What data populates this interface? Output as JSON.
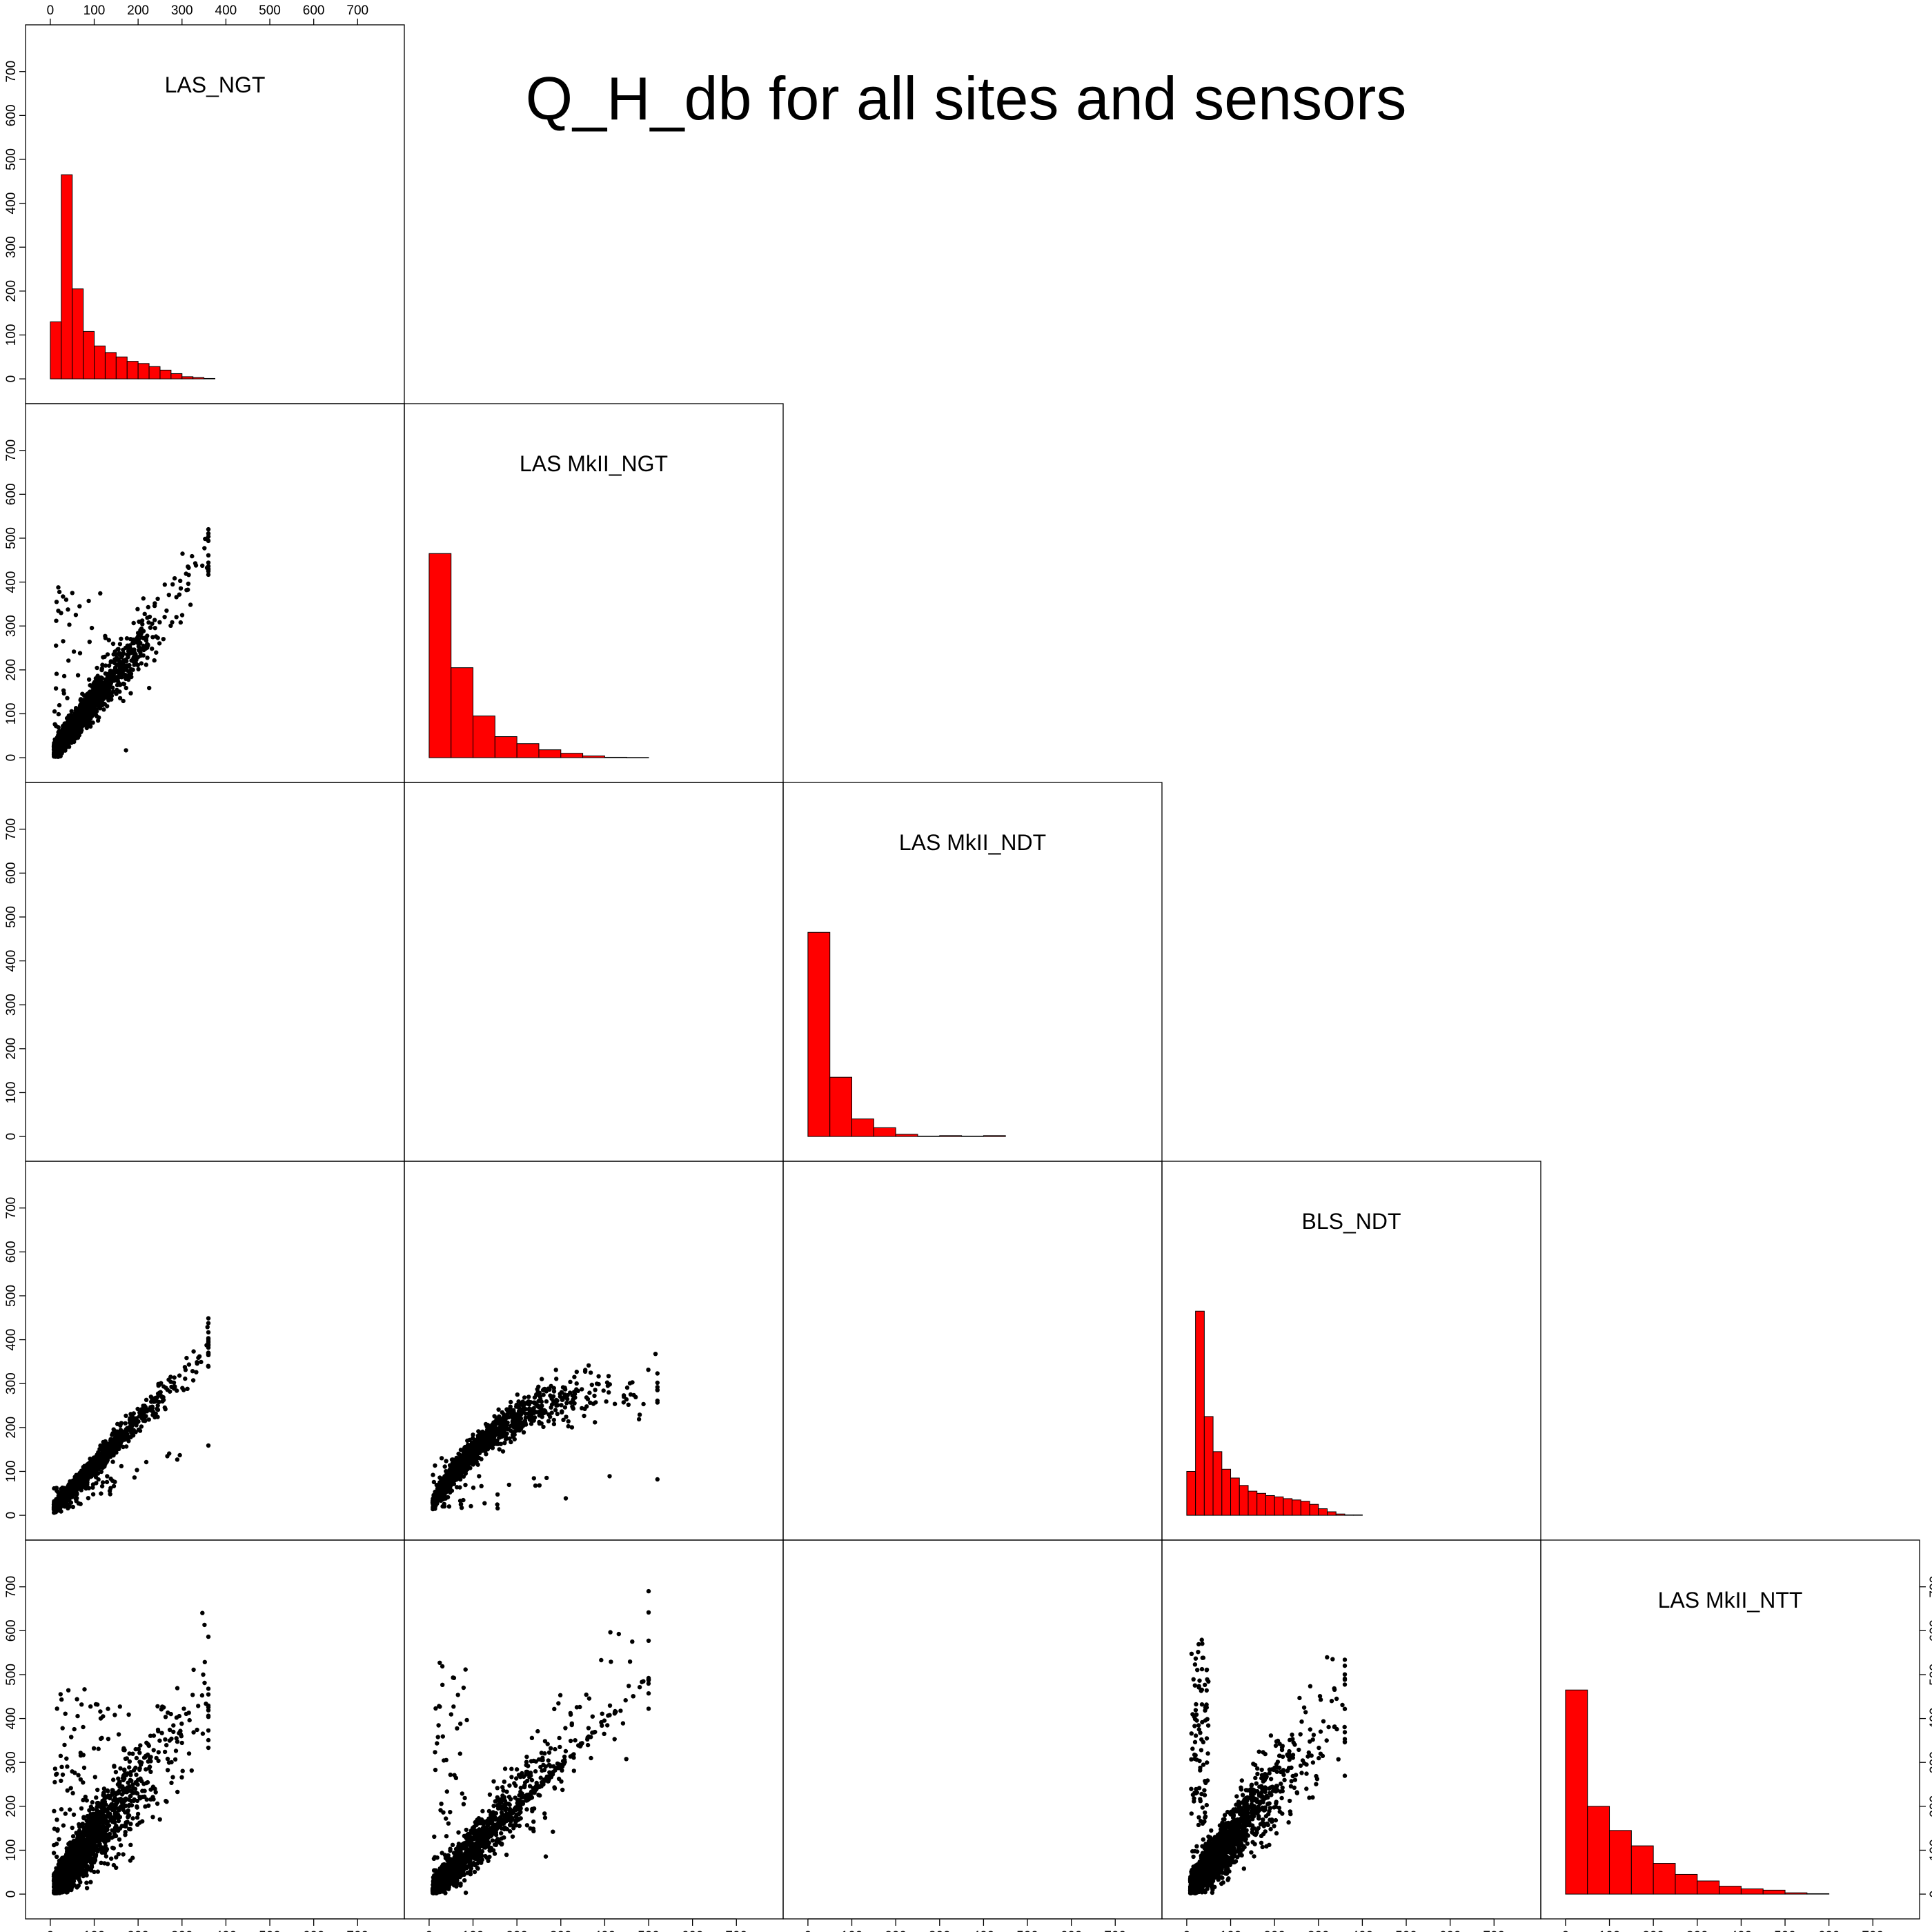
{
  "title": "Q_H_db for all sites and sensors",
  "colors": {
    "bar_fill": "#ff0000",
    "bar_stroke": "#000000",
    "point": "#000000",
    "frame": "#000000"
  },
  "chart_data": {
    "type": "scatter-matrix",
    "title": "Q_H_db for all sites and sensors",
    "variables": [
      "LAS_NGT",
      "LAS MkII_NGT",
      "LAS MkII_NDT",
      "BLS_NDT",
      "LAS MkII_NTT"
    ],
    "axis_range": [
      0,
      700
    ],
    "tick_labels": [
      "0",
      "100",
      "200",
      "300",
      "400",
      "500",
      "600",
      "700"
    ],
    "layout": "lower triangle: scatter plots; diagonal: histograms",
    "diagonal_histograms": [
      {
        "variable": "LAS_NGT",
        "bin_width": 25,
        "bins": [
          0,
          25,
          50,
          75,
          100,
          125,
          150,
          175,
          200,
          225,
          250,
          275,
          300,
          325,
          350
        ],
        "counts": [
          130,
          465,
          205,
          108,
          75,
          60,
          50,
          40,
          35,
          28,
          20,
          12,
          5,
          3,
          1
        ]
      },
      {
        "variable": "LAS MkII_NGT",
        "bin_width": 50,
        "bins": [
          0,
          50,
          100,
          150,
          200,
          250,
          300,
          350,
          400,
          450
        ],
        "counts": [
          465,
          205,
          95,
          48,
          32,
          18,
          10,
          4,
          1,
          0.5
        ]
      },
      {
        "variable": "LAS MkII_NDT",
        "bin_width": 50,
        "bins": [
          0,
          50,
          100,
          150,
          200,
          250,
          300,
          350,
          400
        ],
        "counts": [
          465,
          135,
          40,
          20,
          5,
          1,
          2,
          1,
          2
        ]
      },
      {
        "variable": "BLS_NDT",
        "bin_width": 20,
        "bins": [
          0,
          20,
          40,
          60,
          80,
          100,
          120,
          140,
          160,
          180,
          200,
          220,
          240,
          260,
          280,
          300,
          320,
          340,
          360,
          380
        ],
        "counts": [
          100,
          465,
          225,
          145,
          105,
          85,
          68,
          55,
          50,
          45,
          42,
          38,
          35,
          32,
          25,
          15,
          8,
          3,
          1,
          1
        ]
      },
      {
        "variable": "LAS MkII_NTT",
        "bin_width": 50,
        "bins": [
          0,
          50,
          100,
          150,
          200,
          250,
          300,
          350,
          400,
          450,
          500,
          550
        ],
        "counts": [
          465,
          200,
          145,
          110,
          70,
          45,
          30,
          18,
          12,
          9,
          3,
          1
        ]
      }
    ],
    "scatter_panels": [
      {
        "x": "LAS_NGT",
        "y": "LAS MkII_NGT",
        "relation": "y ≈ 1.25·x, broad scatter",
        "n_points_approx": 2200
      },
      {
        "x": "LAS_NGT",
        "y": "BLS_NDT",
        "relation": "y ≈ 1.05·x, tight",
        "n_points_approx": 2200
      },
      {
        "x": "LAS MkII_NGT",
        "y": "BLS_NDT",
        "relation": "y ≈ 0.75·x, saturating near 300",
        "n_points_approx": 2200
      },
      {
        "x": "LAS_NGT",
        "y": "LAS MkII_NTT",
        "relation": "y ≈ 1.25·x, wide spread",
        "n_points_approx": 2400
      },
      {
        "x": "LAS MkII_NGT",
        "y": "LAS MkII_NTT",
        "relation": "y ≈ x line plus scatter",
        "n_points_approx": 2400
      },
      {
        "x": "BLS_NDT",
        "y": "LAS MkII_NTT",
        "relation": "y ≈ 1.2·x, wide spread",
        "n_points_approx": 2400
      },
      {
        "x": "LAS_NGT",
        "y": "LAS MkII_NDT",
        "relation": "no overlapping data",
        "n_points_approx": 0
      },
      {
        "x": "LAS MkII_NGT",
        "y": "LAS MkII_NDT",
        "relation": "no overlapping data",
        "n_points_approx": 0
      },
      {
        "x": "LAS MkII_NDT",
        "y": "BLS_NDT",
        "relation": "no overlapping data",
        "n_points_approx": 0
      },
      {
        "x": "LAS MkII_NDT",
        "y": "LAS MkII_NTT",
        "relation": "no overlapping data",
        "n_points_approx": 0
      }
    ]
  }
}
